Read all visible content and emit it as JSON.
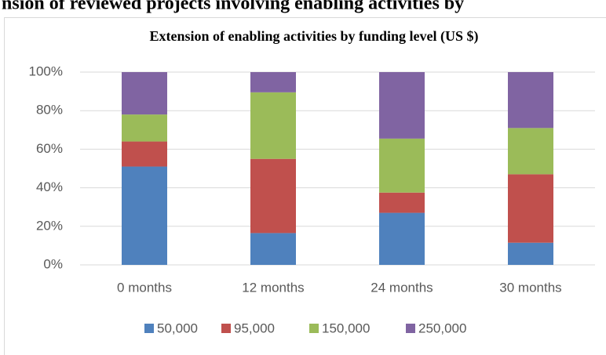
{
  "heading": "nsion of reviewed projects involving enabling activities by",
  "chart_data": {
    "type": "stacked_bar",
    "title": "Extension of enabling activities by funding level (US $)",
    "categories": [
      "0 months",
      "12 months",
      "24 months",
      "30 months"
    ],
    "series": [
      {
        "name": "50,000",
        "color": "#4f81bd",
        "values": [
          51,
          16.5,
          27,
          11.5
        ]
      },
      {
        "name": "95,000",
        "color": "#c0504d",
        "values": [
          13,
          38.5,
          10.5,
          35.5
        ]
      },
      {
        "name": "150,000",
        "color": "#9bbb59",
        "values": [
          14,
          34.5,
          28,
          24
        ]
      },
      {
        "name": "250,000",
        "color": "#8064a2",
        "values": [
          22,
          10.5,
          34.5,
          29
        ]
      }
    ],
    "ylim": [
      0,
      100
    ],
    "yticks": [
      {
        "value": 0,
        "label": "0%"
      },
      {
        "value": 20,
        "label": "20%"
      },
      {
        "value": 40,
        "label": "40%"
      },
      {
        "value": 60,
        "label": "60%"
      },
      {
        "value": 80,
        "label": "80%"
      },
      {
        "value": 100,
        "label": "100%"
      }
    ],
    "grid": true,
    "legend": "bottom"
  }
}
